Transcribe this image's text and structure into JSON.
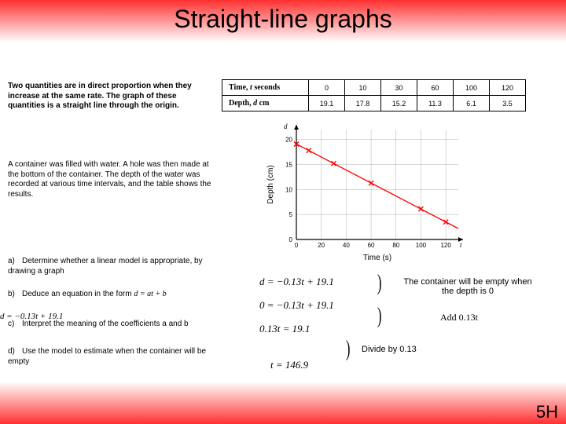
{
  "title": "Straight-line graphs",
  "intro_text": "Two quantities are in direct proportion when they increase at the same rate. The graph of these quantities is a straight line through the origin.",
  "container_text": "A container was filled with water. A hole was then made at the bottom of the container. The depth of the water was recorded at various time intervals, and the table shows the results.",
  "qa": "Determine whether a linear model is appropriate, by drawing a graph",
  "qb": "Deduce an equation in the form",
  "qb_formula": "d = at + b",
  "qb_answer": "d = −0.13t + 19.1",
  "qc": "Interpret the meaning of the coefficients a and b",
  "qd": "Use the model to estimate when the container will be empty",
  "table": {
    "row1_label": "Time, t seconds",
    "row2_label": "Depth, d cm",
    "time": [
      "0",
      "10",
      "30",
      "60",
      "100",
      "120"
    ],
    "depth": [
      "19.1",
      "17.8",
      "15.2",
      "11.3",
      "6.1",
      "3.5"
    ]
  },
  "chart": {
    "xlabel": "Time (s)",
    "ylabel": "Depth (cm)",
    "yvar": "d",
    "xvar": "t",
    "xlim": [
      0,
      130
    ],
    "ylim": [
      0,
      22
    ],
    "xticks": [
      0,
      20,
      40,
      60,
      80,
      100,
      120
    ],
    "yticks": [
      0,
      5,
      10,
      15,
      20
    ],
    "points_x": [
      0,
      10,
      30,
      60,
      100,
      120
    ],
    "points_y": [
      19.1,
      17.8,
      15.2,
      11.3,
      6.1,
      3.5
    ],
    "line_color": "#ff0000",
    "point_color": "#ff0000",
    "axis_color": "#000000",
    "grid_color": "#b0b0b0",
    "background_color": "#ffffff",
    "label_fontsize": 10,
    "tick_fontsize": 8
  },
  "eq1": "d = −0.13t + 19.1",
  "eq2": "0 = −0.13t + 19.1",
  "eq3": "0.13t = 19.1",
  "eq4": "t = 146.9",
  "note1": "The container will be empty when the depth is 0",
  "note2": "Add 0.13t",
  "note3": "Divide by 0.13",
  "corner": "5H"
}
